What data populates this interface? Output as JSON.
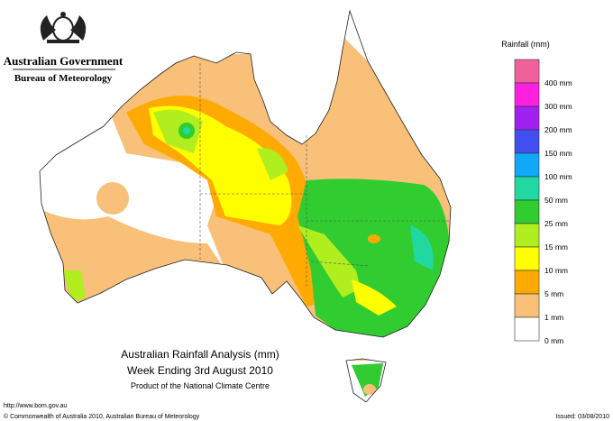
{
  "header": {
    "government": "Australian Government",
    "agency": "Bureau of Meteorology"
  },
  "legend": {
    "title": "Rainfall (mm)",
    "colors": [
      "#f0609a",
      "#ff20e0",
      "#a020f0",
      "#4050f0",
      "#10a8f8",
      "#20d8a0",
      "#30cc30",
      "#b0ee20",
      "#ffff00",
      "#ffaa00",
      "#f8c078",
      "#ffffff"
    ],
    "labels": [
      "400 mm",
      "300 mm",
      "200 mm",
      "150 mm",
      "100 mm",
      "50 mm",
      "25 mm",
      "15 mm",
      "10 mm",
      "5 mm",
      "1 mm",
      "0 mm"
    ]
  },
  "title": {
    "line1": "Australian Rainfall Analysis (mm)",
    "line2": "Week Ending 3rd August 2010",
    "line3": "Product of the National Climate Centre"
  },
  "footer": {
    "url": "http://www.bom.gov.au",
    "copyright": "© Commonwealth of Australia 2010, Australian Bureau of Meteorology",
    "issued": "Issued: 03/08/2010"
  }
}
